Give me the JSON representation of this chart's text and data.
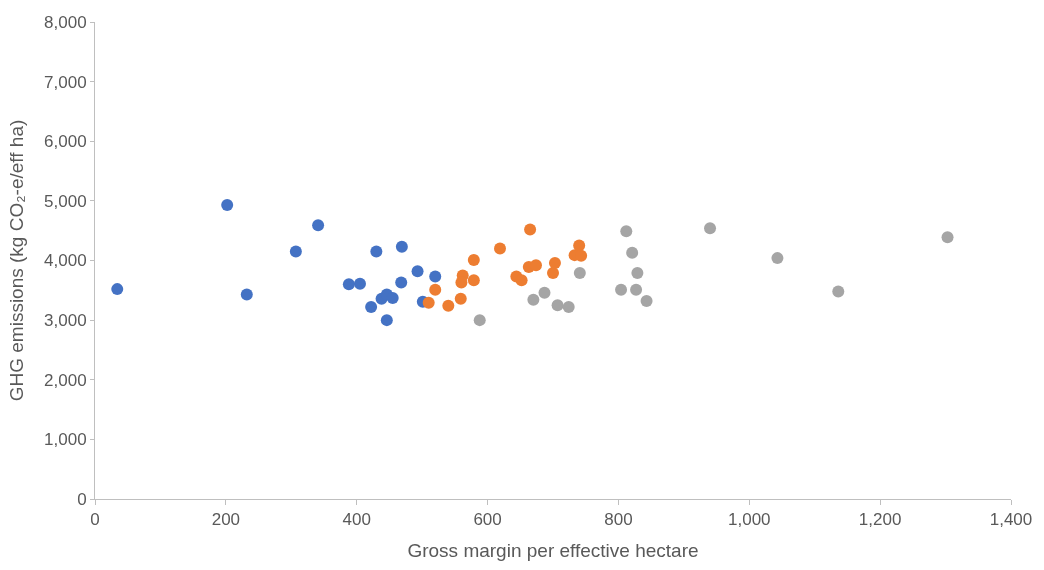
{
  "chart_data": {
    "type": "scatter",
    "xlabel": "Gross margin per effective hectare",
    "ylabel": "GHG emissions (kg CO₂-e/eff ha)",
    "xlim": [
      0,
      1400
    ],
    "xticks": [
      0,
      {
        "value": 200,
        "label": "200"
      },
      {
        "value": 400,
        "label": "400"
      },
      {
        "value": 600,
        "label": "600"
      },
      {
        "value": 800,
        "label": "800"
      },
      {
        "value": 1000,
        "label": "1,000"
      },
      {
        "value": 1200,
        "label": "1,200"
      },
      {
        "value": 1400,
        "label": "1,400"
      }
    ],
    "ylim": [
      0,
      8000
    ],
    "yticks": [
      0,
      {
        "value": 1000,
        "label": "1,000"
      },
      {
        "value": 2000,
        "label": "2,000"
      },
      {
        "value": 3000,
        "label": "3,000"
      },
      {
        "value": 4000,
        "label": "4,000"
      },
      {
        "value": 5000,
        "label": "5,000"
      },
      {
        "value": 6000,
        "label": "6,000"
      },
      {
        "value": 7000,
        "label": "7,000"
      },
      {
        "value": 8000,
        "label": "8,000"
      }
    ],
    "series": [
      {
        "color": "#4472c4",
        "x": [
          34,
          202,
          232,
          307,
          341,
          388,
          405,
          422,
          430,
          438,
          446,
          446,
          455,
          468,
          469,
          493,
          501,
          520
        ],
        "values": [
          3520,
          4930,
          3430,
          4150,
          4590,
          3600,
          3610,
          3220,
          4150,
          3360,
          3430,
          3000,
          3370,
          3630,
          4230,
          3820,
          3310,
          3730
        ]
      },
      {
        "color": "#ed7d31",
        "x": [
          510,
          520,
          540,
          559,
          562,
          560,
          579,
          579,
          619,
          665,
          644,
          652,
          663,
          674,
          700,
          703,
          733,
          740,
          743
        ],
        "values": [
          3290,
          3510,
          3240,
          3360,
          3750,
          3630,
          3670,
          4010,
          4200,
          4520,
          3730,
          3670,
          3890,
          3920,
          3790,
          3960,
          4090,
          4250,
          4080
        ]
      },
      {
        "color": "#a5a5a5",
        "x": [
          588,
          670,
          687,
          707,
          724,
          741,
          812,
          821,
          829,
          804,
          827,
          843,
          940,
          1043,
          1136,
          1303
        ],
        "values": [
          3000,
          3340,
          3460,
          3250,
          3220,
          3790,
          4490,
          4130,
          3790,
          3510,
          3510,
          3320,
          4540,
          4040,
          3480,
          4390
        ]
      }
    ]
  }
}
